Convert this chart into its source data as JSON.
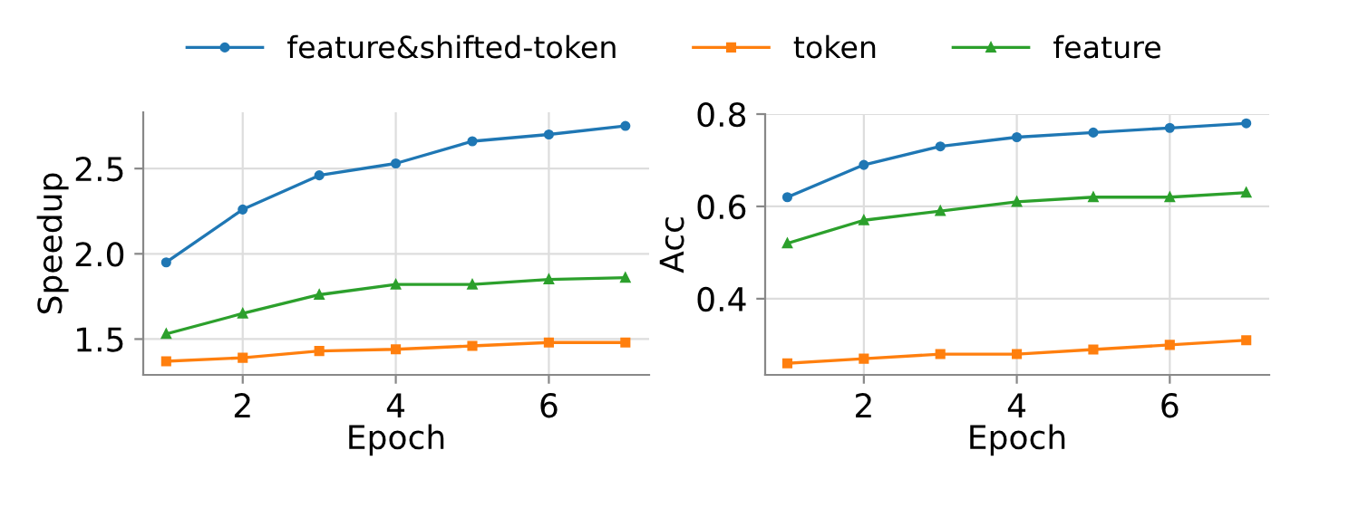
{
  "chart_data": [
    {
      "type": "line",
      "xlabel": "Epoch",
      "ylabel": "Speedup",
      "x": [
        1,
        2,
        3,
        4,
        5,
        6,
        7
      ],
      "xlim": [
        0.7,
        7.31
      ],
      "xticks": [
        2,
        4,
        6
      ],
      "ylim": [
        1.29,
        2.83
      ],
      "yticks": [
        1.5,
        {
          "value": 2.0,
          "label": "2.0"
        },
        2.5
      ],
      "grid": true,
      "legend": "top",
      "series": [
        {
          "name": "feature&shifted-token",
          "color": "#1f77b4",
          "marker": "circle",
          "values": [
            1.95,
            2.26,
            2.46,
            2.53,
            2.66,
            2.7,
            2.75
          ]
        },
        {
          "name": "token",
          "color": "#ff7f0e",
          "marker": "square",
          "values": [
            1.37,
            1.39,
            1.43,
            1.44,
            1.46,
            1.48,
            1.48
          ]
        },
        {
          "name": "feature",
          "color": "#2ca02c",
          "marker": "triangle",
          "values": [
            1.53,
            1.65,
            1.76,
            1.82,
            1.82,
            1.85,
            1.86
          ]
        }
      ]
    },
    {
      "type": "line",
      "xlabel": "Epoch",
      "ylabel": "Acc",
      "x": [
        1,
        2,
        3,
        4,
        5,
        6,
        7
      ],
      "xlim": [
        0.71,
        7.3
      ],
      "xticks": [
        2,
        4,
        6
      ],
      "ylim": [
        0.235,
        0.8
      ],
      "yticks": [
        0.4,
        0.6,
        0.8
      ],
      "grid": true,
      "series": [
        {
          "color": "#1f77b4",
          "marker": "circle",
          "values": [
            0.62,
            0.69,
            0.73,
            0.75,
            0.76,
            0.77,
            0.78
          ]
        },
        {
          "color": "#ff7f0e",
          "marker": "square",
          "values": [
            0.26,
            0.27,
            0.28,
            0.28,
            0.29,
            0.3,
            0.31
          ]
        },
        {
          "color": "#2ca02c",
          "marker": "triangle",
          "values": [
            0.52,
            0.57,
            0.59,
            0.61,
            0.62,
            0.62,
            0.63
          ]
        }
      ]
    }
  ]
}
